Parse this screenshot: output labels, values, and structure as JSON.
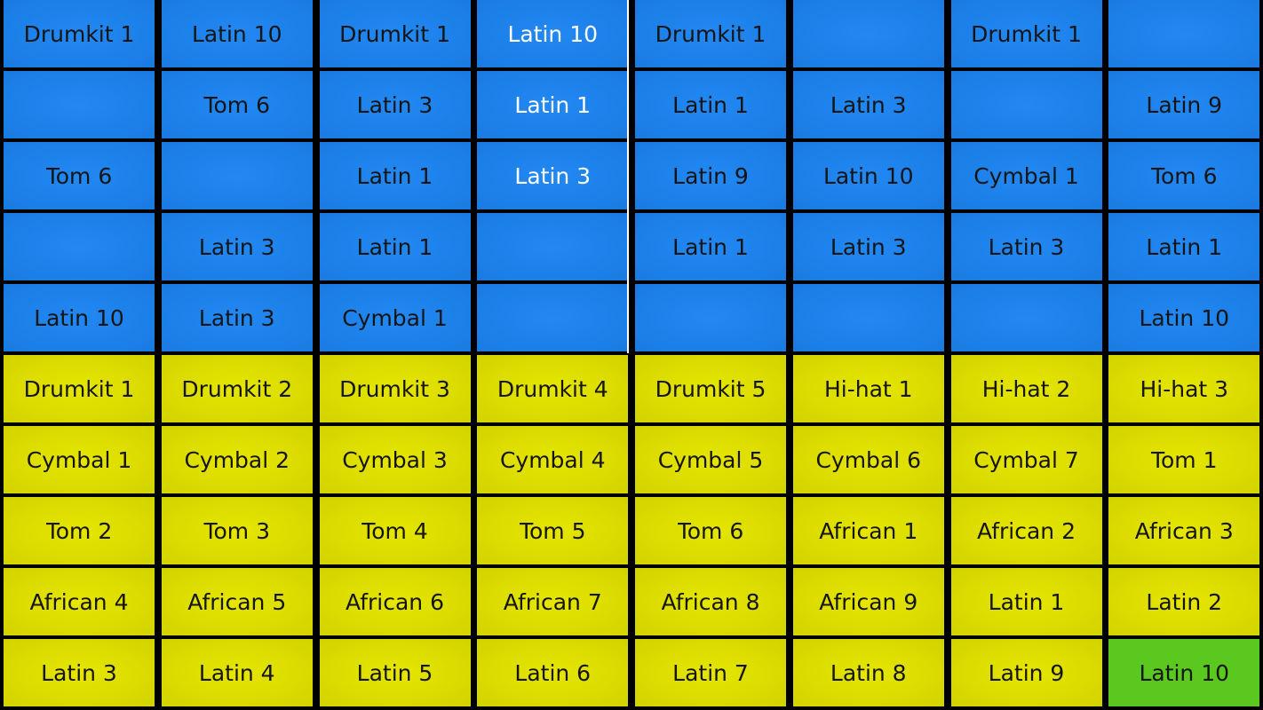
{
  "colors": {
    "pattern": "#1c7fe8",
    "sample": "#dada00",
    "selected": "#5ac81e",
    "active_text": "#ffffff",
    "playhead": "#ffffff"
  },
  "active_step_column": 3,
  "pattern_rows": [
    [
      "Drumkit 1",
      "Latin 10",
      "Drumkit 1",
      "Latin 10",
      "Drumkit 1",
      "",
      "Drumkit 1",
      ""
    ],
    [
      "",
      "Tom 6",
      "Latin 3",
      "Latin 1",
      "Latin 1",
      "Latin 3",
      "",
      "Latin 9"
    ],
    [
      "Tom 6",
      "",
      "Latin 1",
      "Latin 3",
      "Latin 9",
      "Latin 10",
      "Cymbal 1",
      "Tom 6"
    ],
    [
      "",
      "Latin 3",
      "Latin 1",
      "",
      "Latin 1",
      "Latin 3",
      "Latin 3",
      "Latin 1"
    ],
    [
      "Latin 10",
      "Latin 3",
      "Cymbal 1",
      "",
      "",
      "",
      "",
      "Latin 10"
    ]
  ],
  "sample_rows": [
    [
      "Drumkit 1",
      "Drumkit 2",
      "Drumkit 3",
      "Drumkit 4",
      "Drumkit 5",
      "Hi-hat 1",
      "Hi-hat 2",
      "Hi-hat 3"
    ],
    [
      "Cymbal 1",
      "Cymbal 2",
      "Cymbal 3",
      "Cymbal 4",
      "Cymbal 5",
      "Cymbal 6",
      "Cymbal 7",
      "Tom 1"
    ],
    [
      "Tom 2",
      "Tom 3",
      "Tom 4",
      "Tom 5",
      "Tom 6",
      "African 1",
      "African 2",
      "African 3"
    ],
    [
      "African 4",
      "African 5",
      "African 6",
      "African 7",
      "African 8",
      "African 9",
      "Latin 1",
      "Latin 2"
    ],
    [
      "Latin 3",
      "Latin 4",
      "Latin 5",
      "Latin 6",
      "Latin 7",
      "Latin 8",
      "Latin 9",
      "Latin 10"
    ]
  ],
  "selected_sample": "Latin 10"
}
